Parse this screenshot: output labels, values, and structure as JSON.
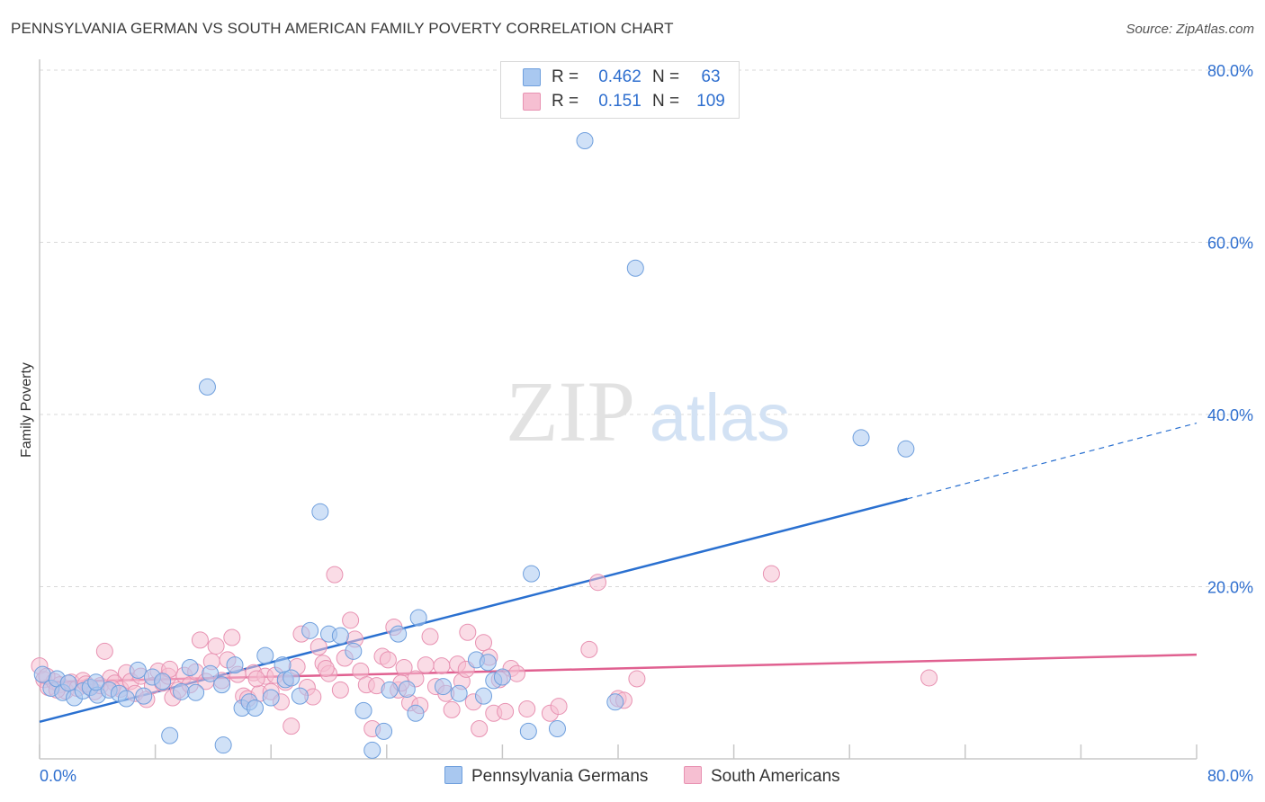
{
  "title": "PENNSYLVANIA GERMAN VS SOUTH AMERICAN FAMILY POVERTY CORRELATION CHART",
  "source": "Source: ZipAtlas.com",
  "watermark": {
    "zip": "ZIP",
    "atlas": "atlas"
  },
  "legend": {
    "rows": [
      {
        "r_label": "R =",
        "r_value": "0.462",
        "n_label": "N =",
        "n_value": "63"
      },
      {
        "r_label": "R =",
        "r_value": "0.151",
        "n_label": "N =",
        "n_value": "109"
      }
    ]
  },
  "bottom_legend": [
    "Pennsylvania Germans",
    "South Americans"
  ],
  "chart_data": {
    "type": "scatter",
    "title": "PENNSYLVANIA GERMAN VS SOUTH AMERICAN FAMILY POVERTY CORRELATION CHART",
    "xlabel": "",
    "ylabel": "Family Poverty",
    "xlim": [
      0,
      80
    ],
    "ylim": [
      0,
      80
    ],
    "x_tick_labels": [
      "0.0%",
      "80.0%"
    ],
    "y_tick_labels": [
      "20.0%",
      "40.0%",
      "60.0%",
      "80.0%"
    ],
    "y_ticks": [
      20,
      40,
      60,
      80
    ],
    "x_ticks": [
      0,
      8,
      16,
      24,
      32,
      40,
      48,
      56,
      64,
      72,
      80
    ],
    "grid": "horizontal dashed",
    "legend_position": "top-center",
    "series": [
      {
        "name": "Pennsylvania Germans",
        "color": "#a9c8f0",
        "stroke": "#6f9fdd",
        "trend_color": "#2a70d0",
        "trend": {
          "x0": 0,
          "y0": 4.3,
          "x1": 60,
          "y1": 30.2,
          "dash_to_x": 80,
          "dash_to_y": 39.0
        },
        "points": [
          [
            0.2,
            9.8
          ],
          [
            0.8,
            8.2
          ],
          [
            1.2,
            9.3
          ],
          [
            1.6,
            7.7
          ],
          [
            2.0,
            8.8
          ],
          [
            2.4,
            7.1
          ],
          [
            3.0,
            7.9
          ],
          [
            3.5,
            8.3
          ],
          [
            4.0,
            7.4
          ],
          [
            4.8,
            8.0
          ],
          [
            5.5,
            7.6
          ],
          [
            6.0,
            7.0
          ],
          [
            6.8,
            10.3
          ],
          [
            7.2,
            7.3
          ],
          [
            7.8,
            9.5
          ],
          [
            8.5,
            9.0
          ],
          [
            9.0,
            2.7
          ],
          [
            9.8,
            7.8
          ],
          [
            10.4,
            10.6
          ],
          [
            10.8,
            7.7
          ],
          [
            11.6,
            43.2
          ],
          [
            11.8,
            9.9
          ],
          [
            12.6,
            8.6
          ],
          [
            12.7,
            1.6
          ],
          [
            13.5,
            10.9
          ],
          [
            14.0,
            5.9
          ],
          [
            14.5,
            6.6
          ],
          [
            14.9,
            5.9
          ],
          [
            15.6,
            12.0
          ],
          [
            16.0,
            7.1
          ],
          [
            16.8,
            10.9
          ],
          [
            17.0,
            9.2
          ],
          [
            17.4,
            9.4
          ],
          [
            18.0,
            7.3
          ],
          [
            18.7,
            14.9
          ],
          [
            19.4,
            28.7
          ],
          [
            20.0,
            14.5
          ],
          [
            20.8,
            14.3
          ],
          [
            21.7,
            12.5
          ],
          [
            22.4,
            5.6
          ],
          [
            23.0,
            1.0
          ],
          [
            23.8,
            3.2
          ],
          [
            24.2,
            8.0
          ],
          [
            24.8,
            14.5
          ],
          [
            25.4,
            8.1
          ],
          [
            26.0,
            5.3
          ],
          [
            26.2,
            16.4
          ],
          [
            29.0,
            7.6
          ],
          [
            30.2,
            11.5
          ],
          [
            30.7,
            7.3
          ],
          [
            31.0,
            11.2
          ],
          [
            31.4,
            9.1
          ],
          [
            32.0,
            9.5
          ],
          [
            33.8,
            3.2
          ],
          [
            34.0,
            21.5
          ],
          [
            35.8,
            3.5
          ],
          [
            37.7,
            71.8
          ],
          [
            39.8,
            6.6
          ],
          [
            41.2,
            57.0
          ],
          [
            56.8,
            37.3
          ],
          [
            59.9,
            36.0
          ],
          [
            3.9,
            8.9
          ],
          [
            27.9,
            8.4
          ]
        ]
      },
      {
        "name": "South Americans",
        "color": "#f6bfd2",
        "stroke": "#e892b2",
        "trend_color": "#e06090",
        "trend": {
          "x0": 0,
          "y0": 8.9,
          "x1": 80,
          "y1": 12.1
        },
        "points": [
          [
            0.0,
            10.8
          ],
          [
            0.3,
            9.2
          ],
          [
            0.6,
            8.3
          ],
          [
            1.0,
            9.0
          ],
          [
            1.4,
            8.6
          ],
          [
            1.8,
            7.9
          ],
          [
            2.2,
            8.9
          ],
          [
            2.6,
            8.2
          ],
          [
            3.0,
            9.1
          ],
          [
            3.4,
            8.4
          ],
          [
            3.8,
            7.8
          ],
          [
            4.2,
            8.5
          ],
          [
            4.5,
            12.5
          ],
          [
            4.9,
            9.4
          ],
          [
            5.2,
            8.8
          ],
          [
            5.6,
            8.1
          ],
          [
            6.0,
            10.0
          ],
          [
            6.3,
            9.0
          ],
          [
            6.6,
            7.6
          ],
          [
            7.0,
            9.6
          ],
          [
            7.4,
            6.9
          ],
          [
            7.8,
            8.5
          ],
          [
            8.2,
            10.2
          ],
          [
            8.5,
            8.8
          ],
          [
            8.9,
            9.6
          ],
          [
            9.2,
            7.1
          ],
          [
            9.6,
            8.0
          ],
          [
            10.0,
            9.7
          ],
          [
            10.4,
            8.6
          ],
          [
            10.8,
            10.1
          ],
          [
            11.1,
            13.8
          ],
          [
            11.5,
            9.0
          ],
          [
            11.9,
            11.3
          ],
          [
            12.2,
            13.1
          ],
          [
            12.6,
            9.1
          ],
          [
            13.0,
            11.5
          ],
          [
            13.3,
            14.1
          ],
          [
            13.7,
            9.8
          ],
          [
            14.1,
            7.3
          ],
          [
            14.4,
            7.0
          ],
          [
            14.8,
            10.0
          ],
          [
            15.2,
            7.6
          ],
          [
            15.6,
            9.6
          ],
          [
            16.0,
            7.8
          ],
          [
            16.3,
            9.7
          ],
          [
            16.7,
            6.6
          ],
          [
            17.0,
            8.9
          ],
          [
            17.4,
            3.8
          ],
          [
            17.8,
            10.7
          ],
          [
            18.1,
            14.5
          ],
          [
            18.5,
            8.3
          ],
          [
            18.9,
            7.2
          ],
          [
            19.3,
            13.0
          ],
          [
            19.6,
            11.1
          ],
          [
            20.0,
            9.9
          ],
          [
            20.4,
            21.4
          ],
          [
            20.8,
            8.0
          ],
          [
            21.1,
            11.7
          ],
          [
            21.5,
            16.1
          ],
          [
            21.8,
            13.9
          ],
          [
            22.2,
            10.2
          ],
          [
            22.6,
            8.6
          ],
          [
            23.0,
            3.5
          ],
          [
            23.3,
            8.5
          ],
          [
            23.7,
            11.9
          ],
          [
            24.1,
            11.5
          ],
          [
            24.5,
            15.3
          ],
          [
            24.8,
            8.0
          ],
          [
            25.2,
            10.6
          ],
          [
            25.6,
            6.5
          ],
          [
            26.0,
            9.3
          ],
          [
            26.3,
            6.2
          ],
          [
            26.7,
            10.9
          ],
          [
            27.0,
            14.2
          ],
          [
            27.4,
            8.4
          ],
          [
            27.8,
            10.8
          ],
          [
            28.1,
            7.6
          ],
          [
            28.5,
            5.7
          ],
          [
            28.9,
            11.0
          ],
          [
            29.2,
            9.0
          ],
          [
            29.6,
            14.7
          ],
          [
            30.0,
            6.6
          ],
          [
            30.4,
            3.5
          ],
          [
            30.7,
            13.5
          ],
          [
            31.1,
            11.8
          ],
          [
            31.4,
            5.3
          ],
          [
            31.8,
            9.2
          ],
          [
            32.2,
            5.5
          ],
          [
            32.6,
            10.5
          ],
          [
            33.0,
            9.9
          ],
          [
            33.7,
            5.8
          ],
          [
            35.3,
            5.3
          ],
          [
            35.9,
            6.1
          ],
          [
            38.0,
            12.7
          ],
          [
            38.6,
            20.5
          ],
          [
            40.0,
            7.0
          ],
          [
            40.4,
            6.8
          ],
          [
            41.3,
            9.3
          ],
          [
            50.6,
            21.5
          ],
          [
            61.5,
            9.4
          ],
          [
            0.5,
            9.6
          ],
          [
            1.2,
            8.0
          ],
          [
            3.2,
            8.7
          ],
          [
            5.0,
            8.2
          ],
          [
            9.0,
            10.4
          ],
          [
            15.0,
            9.3
          ],
          [
            19.8,
            10.5
          ],
          [
            25.0,
            8.8
          ],
          [
            29.5,
            10.4
          ]
        ]
      }
    ]
  },
  "colors": {
    "grid": "#d9d9d9",
    "axis": "#c8c8c8",
    "tick_label": "#2f6fcf",
    "watermark": "#e2e2e2",
    "watermark_atlas": "#d3e2f4"
  }
}
